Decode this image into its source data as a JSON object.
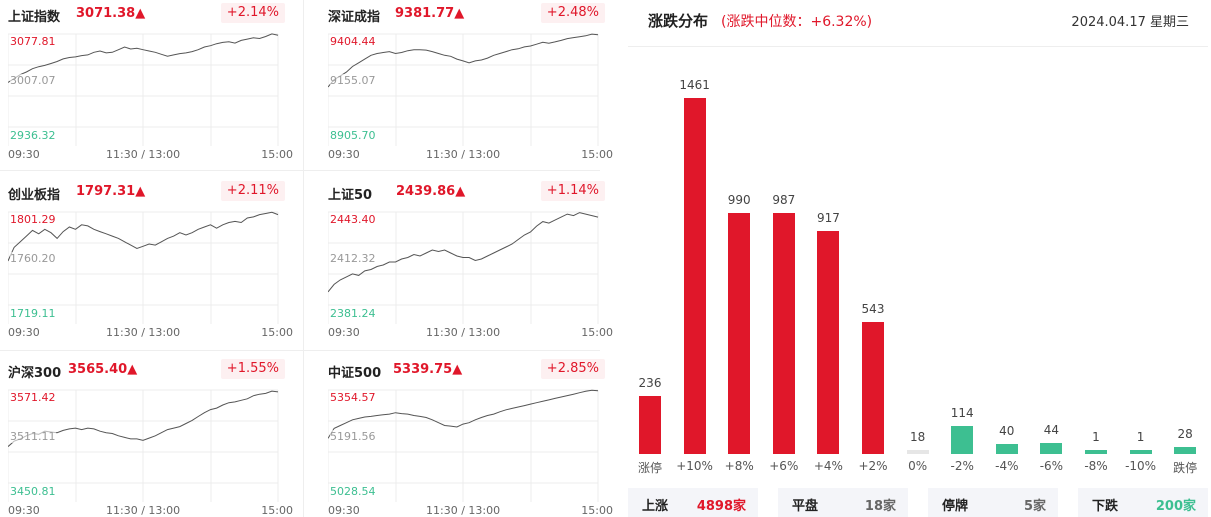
{
  "indices": [
    {
      "name": "上证指数",
      "price": "3071.38▲",
      "change": "+2.14%",
      "high": "3077.81",
      "mid": "3007.07",
      "low": "2936.32",
      "line": [
        3004,
        3010,
        3016,
        3020,
        3025,
        3028,
        3030,
        3033,
        3036,
        3040,
        3042,
        3043,
        3045,
        3046,
        3050,
        3052,
        3049,
        3050,
        3054,
        3058,
        3055,
        3056,
        3054,
        3052,
        3050,
        3047,
        3044,
        3046,
        3048,
        3049,
        3051,
        3054,
        3058,
        3060,
        3063,
        3065,
        3066,
        3064,
        3068,
        3070,
        3072,
        3071,
        3074,
        3078,
        3076
      ]
    },
    {
      "name": "深证成指",
      "price": "9381.77▲",
      "change": "+2.48%",
      "high": "9404.44",
      "mid": "9155.07",
      "low": "8905.70",
      "line": [
        9120,
        9160,
        9180,
        9200,
        9230,
        9250,
        9270,
        9290,
        9300,
        9305,
        9310,
        9300,
        9305,
        9315,
        9320,
        9320,
        9318,
        9310,
        9300,
        9290,
        9285,
        9270,
        9260,
        9250,
        9260,
        9265,
        9275,
        9290,
        9300,
        9310,
        9320,
        9325,
        9335,
        9340,
        9350,
        9360,
        9355,
        9362,
        9370,
        9380,
        9385,
        9390,
        9395,
        9404,
        9400
      ]
    },
    {
      "name": "创业板指",
      "price": "1797.31▲",
      "change": "+2.11%",
      "high": "1801.29",
      "mid": "1760.20",
      "low": "1719.11",
      "line": [
        1758,
        1770,
        1775,
        1780,
        1785,
        1782,
        1786,
        1783,
        1778,
        1784,
        1788,
        1786,
        1790,
        1789,
        1786,
        1784,
        1782,
        1780,
        1778,
        1775,
        1772,
        1769,
        1771,
        1773,
        1772,
        1775,
        1778,
        1780,
        1783,
        1781,
        1783,
        1786,
        1788,
        1790,
        1787,
        1790,
        1792,
        1793,
        1792,
        1796,
        1797,
        1799,
        1800,
        1801,
        1799
      ]
    },
    {
      "name": "上证50",
      "price": "2439.86▲",
      "change": "+1.14%",
      "high": "2443.40",
      "mid": "2412.32",
      "low": "2381.24",
      "line": [
        2390,
        2395,
        2398,
        2400,
        2402,
        2401,
        2404,
        2405,
        2407,
        2408,
        2410,
        2410,
        2412,
        2413,
        2415,
        2414,
        2416,
        2418,
        2417,
        2418,
        2416,
        2414,
        2413,
        2413,
        2411,
        2412,
        2414,
        2416,
        2418,
        2420,
        2422,
        2425,
        2428,
        2430,
        2434,
        2437,
        2436,
        2438,
        2440,
        2442,
        2441,
        2443,
        2442,
        2441,
        2440
      ]
    },
    {
      "name": "沪深300",
      "price": "3565.40▲",
      "change": "+1.55%",
      "high": "3571.42",
      "mid": "3511.11",
      "low": "3450.81",
      "line": [
        3498,
        3505,
        3508,
        3512,
        3515,
        3514,
        3518,
        3517,
        3516,
        3519,
        3521,
        3522,
        3520,
        3522,
        3521,
        3518,
        3516,
        3515,
        3512,
        3510,
        3508,
        3508,
        3506,
        3509,
        3512,
        3516,
        3520,
        3522,
        3524,
        3528,
        3532,
        3537,
        3542,
        3546,
        3548,
        3552,
        3555,
        3556,
        3558,
        3560,
        3564,
        3566,
        3567,
        3570,
        3569
      ]
    },
    {
      "name": "中证500",
      "price": "5339.75▲",
      "change": "+2.85%",
      "high": "5354.57",
      "mid": "5191.56",
      "low": "5028.54",
      "line": [
        5185,
        5220,
        5230,
        5240,
        5250,
        5255,
        5260,
        5262,
        5265,
        5268,
        5270,
        5275,
        5272,
        5270,
        5265,
        5262,
        5258,
        5250,
        5240,
        5230,
        5228,
        5225,
        5235,
        5240,
        5250,
        5258,
        5265,
        5270,
        5278,
        5285,
        5290,
        5295,
        5300,
        5305,
        5310,
        5315,
        5320,
        5325,
        5330,
        5335,
        5340,
        5345,
        5350,
        5354,
        5352
      ]
    }
  ],
  "time_labels": {
    "start": "09:30",
    "mid": "11:30 / 13:00",
    "end": "15:00"
  },
  "distribution": {
    "title": "涨跌分布",
    "subtitle": "(涨跌中位数：+6.32%)",
    "date": "2024.04.17 星期三"
  },
  "chart_data": {
    "type": "bar",
    "categories": [
      "涨停",
      "+10%",
      "+8%",
      "+6%",
      "+4%",
      "+2%",
      "0%",
      "-2%",
      "-4%",
      "-6%",
      "-8%",
      "-10%",
      "跌停"
    ],
    "values": [
      236,
      1461,
      990,
      987,
      917,
      543,
      18,
      114,
      40,
      44,
      1,
      1,
      28
    ],
    "colors": [
      "#e0172a",
      "#e0172a",
      "#e0172a",
      "#e0172a",
      "#e0172a",
      "#e0172a",
      "#e6e6e6",
      "#3dbf91",
      "#3dbf91",
      "#3dbf91",
      "#3dbf91",
      "#3dbf91",
      "#3dbf91"
    ],
    "ylim": [
      0,
      1461
    ]
  },
  "stats": [
    {
      "label": "上涨",
      "value": "4898家",
      "color": "#e0172a"
    },
    {
      "label": "平盘",
      "value": "18家",
      "color": "#666666"
    },
    {
      "label": "停牌",
      "value": "5家",
      "color": "#666666"
    },
    {
      "label": "下跌",
      "value": "200家",
      "color": "#3dbf91"
    }
  ]
}
